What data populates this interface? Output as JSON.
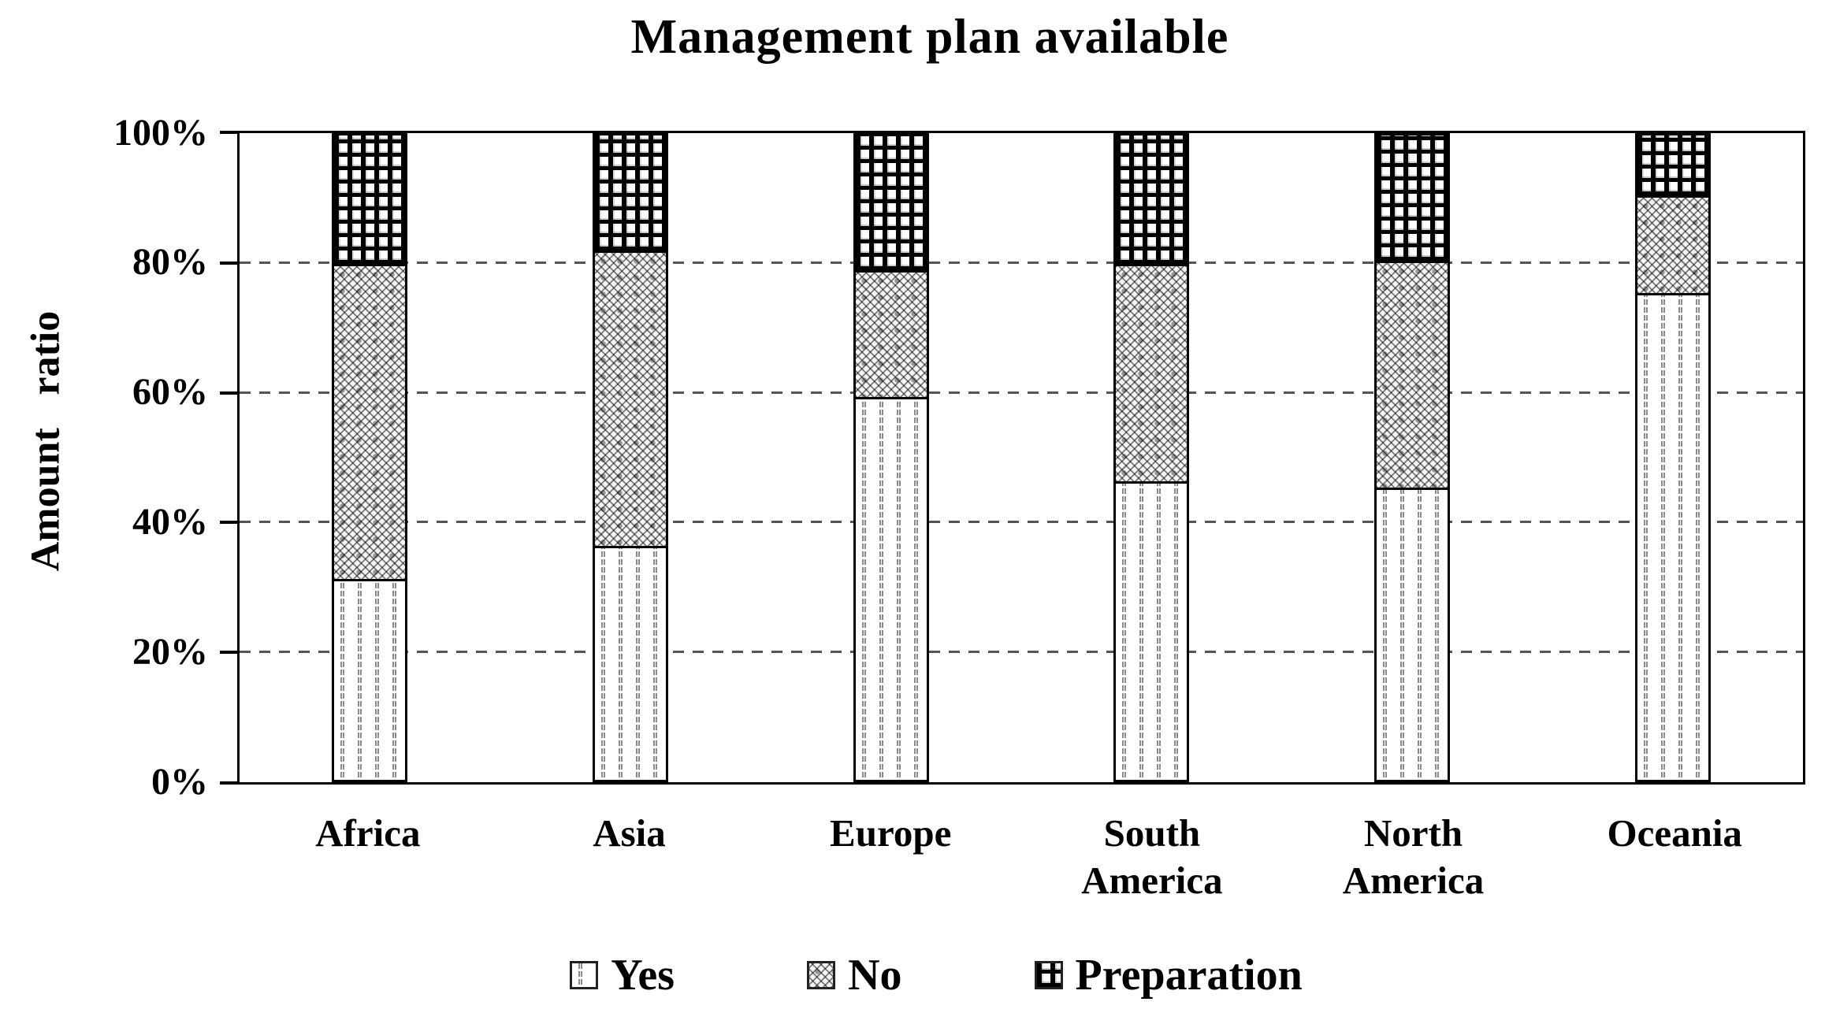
{
  "chart_data": {
    "type": "bar",
    "stacked": true,
    "title": "Management plan available",
    "ylabel": "Amount ratio",
    "ylim": [
      0,
      100
    ],
    "yticks": [
      "100%",
      "80%",
      "60%",
      "40%",
      "20%",
      "0%"
    ],
    "grid": "horizontal dashed gridlines every 20%",
    "legend_position": "bottom",
    "categories": [
      {
        "line1": "Africa",
        "line2": ""
      },
      {
        "line1": "Asia",
        "line2": ""
      },
      {
        "line1": "Europe",
        "line2": ""
      },
      {
        "line1": "South",
        "line2": "America"
      },
      {
        "line1": "North",
        "line2": "America"
      },
      {
        "line1": "Oceania",
        "line2": ""
      }
    ],
    "series": [
      {
        "name": "Yes",
        "pattern": "vertical-dashed-lines",
        "values": [
          31,
          36,
          59,
          46,
          45,
          75
        ]
      },
      {
        "name": "No",
        "pattern": "diagonal-crosshatch",
        "values": [
          48.5,
          45.5,
          19.5,
          33.5,
          35,
          15
        ]
      },
      {
        "name": "Preparation",
        "pattern": "bold-grid",
        "values": [
          20.5,
          18.5,
          21.5,
          20.5,
          20,
          10
        ]
      }
    ],
    "colors": {
      "foreground": "#000000",
      "background": "#ffffff",
      "gridline": "#555555"
    }
  }
}
